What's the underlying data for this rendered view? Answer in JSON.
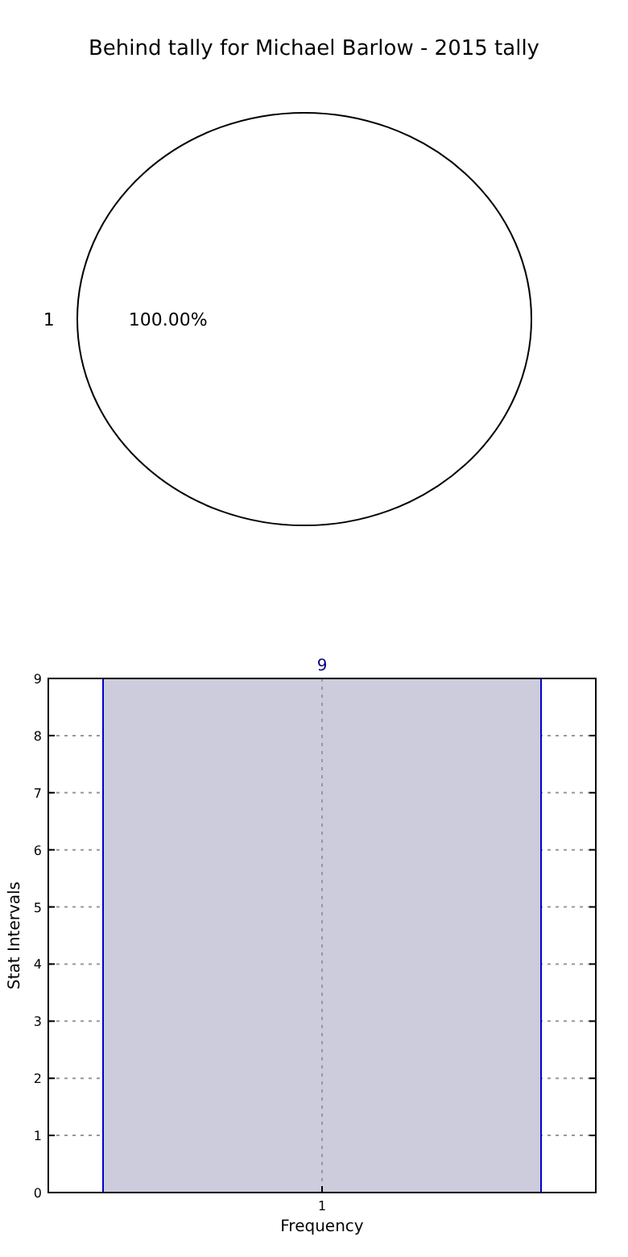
{
  "chart_data": [
    {
      "type": "pie",
      "title": "Behind tally for Michael Barlow - 2015 tally",
      "categories": [
        "1"
      ],
      "values": [
        100
      ],
      "colors": [
        "#ffffff"
      ],
      "value_labels": [
        "100.00%"
      ]
    },
    {
      "type": "bar",
      "categories": [
        "1"
      ],
      "values": [
        9
      ],
      "color": "#ccccdd",
      "xlabel": "Frequency",
      "ylabel": "Stat Intervals",
      "ylim": [
        0,
        9
      ],
      "yticks": [
        0,
        1,
        2,
        3,
        4,
        5,
        6,
        7,
        8,
        9
      ],
      "grid": true,
      "data_labels": true
    }
  ]
}
